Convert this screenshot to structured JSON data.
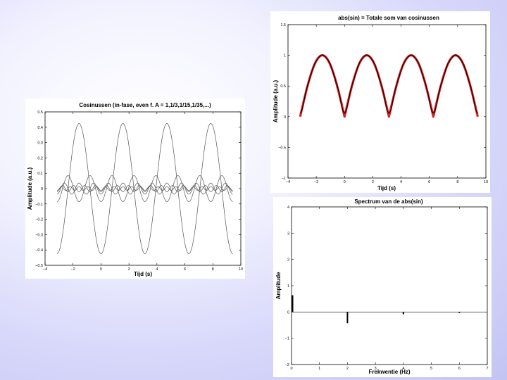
{
  "chart_data": [
    {
      "type": "line",
      "title": "Cosinussen (in-fase, even f. A = 1,1/3,1/15,1/35,...)",
      "xlabel": "Tijd (s)",
      "ylabel": "Amplitude (a.u.)",
      "xlim": [
        -4,
        10
      ],
      "ylim": [
        -0.5,
        0.5
      ],
      "xticks": [
        "−4",
        "−2",
        "0",
        "2",
        "4",
        "6",
        "8",
        "10"
      ],
      "yticks": [
        "0.5",
        "0.4",
        "0.3",
        "0.2",
        "0.1",
        "0",
        "−0.1",
        "−0.2",
        "−0.3",
        "−0.4",
        "−0.5"
      ],
      "x_range": [
        -3.14159,
        9.42478
      ],
      "series": [
        {
          "harmonic": 2,
          "amplitude": -0.4244
        },
        {
          "harmonic": 4,
          "amplitude": -0.0849
        },
        {
          "harmonic": 6,
          "amplitude": -0.0364
        },
        {
          "harmonic": 8,
          "amplitude": -0.0202
        },
        {
          "harmonic": 10,
          "amplitude": -0.0129
        }
      ],
      "line_color": "#555555",
      "grid": false
    },
    {
      "type": "line",
      "title": "abs(sin) = Totale som van cosinussen",
      "xlabel": "Tijd (s)",
      "ylabel": "Amplitude (a.u.)",
      "xlim": [
        -4,
        10
      ],
      "ylim": [
        -1,
        1.5
      ],
      "xticks": [
        "−4",
        "−2",
        "0",
        "2",
        "4",
        "6",
        "8",
        "10"
      ],
      "yticks": [
        "1.5",
        "1",
        "0.5",
        "0",
        "−0.5",
        "−1"
      ],
      "x_range": [
        -3.14159,
        9.42478
      ],
      "series": [
        {
          "function": "abs(sin(x))",
          "color": "#dd2222"
        },
        {
          "function": "0.6366 - sum of first 5 cosine harmonics",
          "color": "#000000"
        }
      ],
      "grid": false
    },
    {
      "type": "bar",
      "title": "Spectrum van de abs(sin)",
      "xlabel": "Frekwentie (Hz)",
      "ylabel": "Amplitude",
      "xlim": [
        0,
        7
      ],
      "ylim": [
        -2,
        4
      ],
      "xticks": [
        "0",
        "1",
        "2",
        "3",
        "4",
        "5",
        "6",
        "7"
      ],
      "yticks": [
        "4",
        "3",
        "2",
        "1",
        "0",
        "−1",
        "−2"
      ],
      "x": [
        0,
        2,
        4,
        6
      ],
      "values": [
        0.6366,
        -0.4244,
        -0.0849,
        -0.0364
      ],
      "grid": false
    }
  ]
}
